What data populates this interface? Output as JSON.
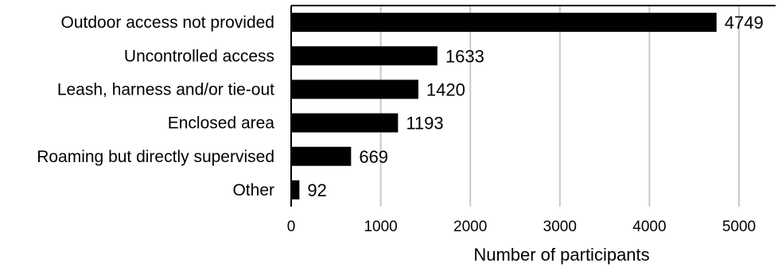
{
  "chart_data": {
    "type": "bar",
    "orientation": "horizontal",
    "categories": [
      "Outdoor access not provided",
      "Uncontrolled access",
      "Leash, harness and/or tie-out",
      "Enclosed area",
      "Roaming but directly supervised",
      "Other"
    ],
    "values": [
      4749,
      1633,
      1420,
      1193,
      669,
      92
    ],
    "data_labels": [
      "4749",
      "1633",
      "1420",
      "1193",
      "669",
      "92"
    ],
    "xlabel": "Number of participants",
    "ylabel": "",
    "xlim": [
      0,
      5500
    ],
    "xticks": [
      0,
      1000,
      2000,
      3000,
      4000,
      5000
    ],
    "xtick_labels": [
      "0",
      "1000",
      "2000",
      "3000",
      "4000",
      "5000"
    ],
    "grid": "vertical",
    "bar_color": "#000000"
  }
}
